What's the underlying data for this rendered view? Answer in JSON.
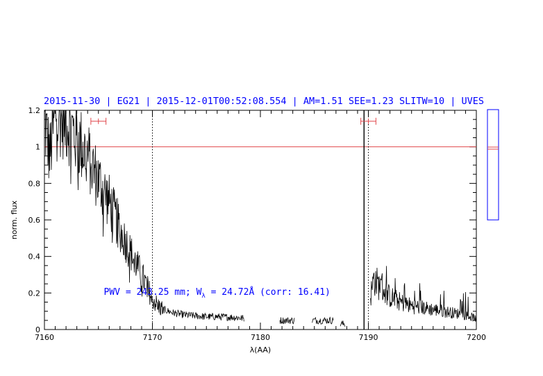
{
  "chart_data": {
    "type": "line",
    "title": "2015-11-30 | EG21 | 2015-12-01T00:52:08.554 | AM=1.51 SEE=1.23 SLITW=10 | UVES",
    "xlabel": "λ(AA)",
    "ylabel": "norm. flux",
    "xlim": [
      7160,
      7200
    ],
    "ylim": [
      0,
      1.2
    ],
    "x_ticks": [
      7160,
      7170,
      7180,
      7190,
      7200
    ],
    "x_tick_labels": [
      "7160",
      "7170",
      "7180",
      "7190",
      "7200"
    ],
    "y_ticks": [
      0,
      0.2,
      0.4,
      0.6,
      0.8,
      1,
      1.2
    ],
    "y_tick_labels": [
      "0",
      "0.2",
      "0.4",
      "0.6",
      "0.8",
      "1",
      "1.2"
    ],
    "reference_line_y": 1.0,
    "dotted_vlines_x": [
      7170,
      7190
    ],
    "solid_vline_x": 7189.6,
    "error_bars": [
      {
        "x": 7165.0,
        "half_width": 0.7,
        "y": 1.14
      },
      {
        "x": 7190.0,
        "half_width": 0.7,
        "y": 1.14
      }
    ],
    "annotation": {
      "prefix": "PWV = 243.25 mm; W",
      "subscript": "λ",
      "suffix": " = 24.72Å (corr: 16.41)",
      "x": 7165.5,
      "y": 0.19
    },
    "spectrum_nodes": [
      [
        7160.0,
        1.15
      ],
      [
        7160.5,
        0.95
      ],
      [
        7161.0,
        1.2
      ],
      [
        7162.0,
        1.15
      ],
      [
        7163.0,
        1.05
      ],
      [
        7164.0,
        0.95
      ],
      [
        7165.0,
        0.82
      ],
      [
        7166.0,
        0.7
      ],
      [
        7167.0,
        0.55
      ],
      [
        7168.0,
        0.42
      ],
      [
        7169.0,
        0.3
      ],
      [
        7170.0,
        0.17
      ],
      [
        7170.5,
        0.13
      ],
      [
        7171.0,
        0.11
      ],
      [
        7172.0,
        0.09
      ],
      [
        7173.0,
        0.08
      ],
      [
        7174.0,
        0.075
      ],
      [
        7175.0,
        0.07
      ],
      [
        7176.0,
        0.07
      ],
      [
        7177.0,
        0.068
      ],
      [
        7178.0,
        0.065
      ],
      [
        7178.5,
        0.06
      ]
    ],
    "spectrum_segments": [
      {
        "x_from": 7181.8,
        "x_to": 7183.2,
        "level": 0.05
      },
      {
        "x_from": 7184.8,
        "x_to": 7186.8,
        "level": 0.05
      },
      {
        "x_from": 7187.4,
        "x_to": 7187.9,
        "level": 0.03
      }
    ],
    "spectrum_tail_nodes": [
      [
        7190.2,
        0.18
      ],
      [
        7190.5,
        0.28
      ],
      [
        7191.0,
        0.24
      ],
      [
        7192.0,
        0.18
      ],
      [
        7193.0,
        0.15
      ],
      [
        7194.0,
        0.13
      ],
      [
        7195.0,
        0.12
      ],
      [
        7196.0,
        0.11
      ],
      [
        7197.0,
        0.1
      ],
      [
        7198.0,
        0.09
      ],
      [
        7199.0,
        0.08
      ],
      [
        7200.0,
        0.06
      ]
    ],
    "series_color": "#000000",
    "reference_color": "#e0474c",
    "title_color": "#0000ff",
    "inset_color": "#0000ff"
  }
}
